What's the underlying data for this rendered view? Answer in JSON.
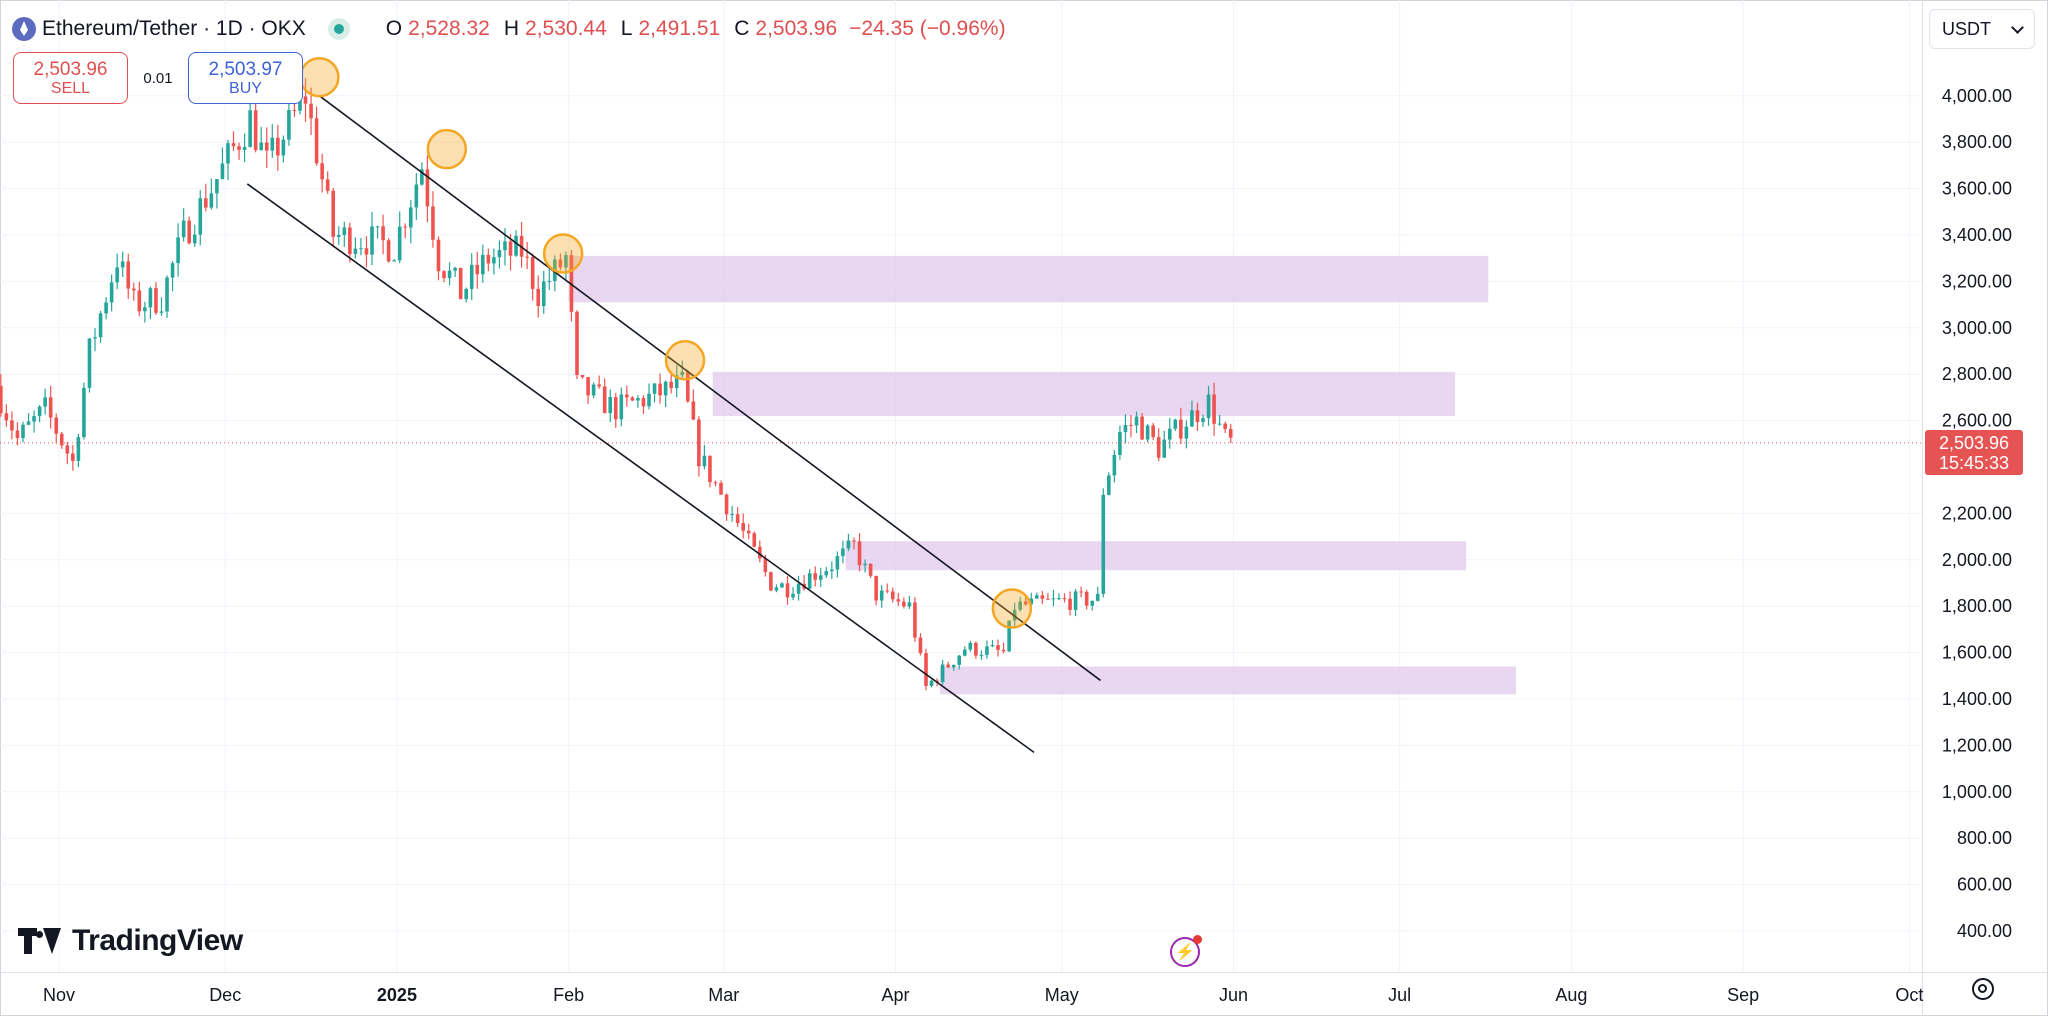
{
  "header": {
    "title": "Ethereum/Tether · 1D · OKX",
    "open_label": "O",
    "open": "2,528.32",
    "high_label": "H",
    "high": "2,530.44",
    "low_label": "L",
    "low": "2,491.51",
    "close_label": "C",
    "close": "2,503.96",
    "change": "−24.35 (−0.96%)"
  },
  "trade": {
    "sell_price": "2,503.96",
    "sell_label": "SELL",
    "spread": "0.01",
    "buy_price": "2,503.97",
    "buy_label": "BUY"
  },
  "currency": {
    "selected": "USDT"
  },
  "last_price": {
    "price": "2,503.96",
    "countdown": "15:45:33"
  },
  "branding": {
    "name": "TradingView"
  },
  "colors": {
    "up": "#26a69a",
    "down": "#ef5350",
    "zone": "#e1c8ec",
    "marker": "#f5a623",
    "price_tag": "#e55353"
  },
  "icons": [
    "ethereum-logo-icon",
    "market-status-icon",
    "chevron-down-icon",
    "lightning-icon",
    "gear-icon",
    "tradingview-logo-icon"
  ],
  "chart_data": {
    "type": "candlestick",
    "x_axis": {
      "ticks": [
        {
          "date": "2024-11-01",
          "label": "Nov"
        },
        {
          "date": "2024-12-01",
          "label": "Dec"
        },
        {
          "date": "2025-01-01",
          "label": "2025"
        },
        {
          "date": "2025-02-01",
          "label": "Feb"
        },
        {
          "date": "2025-03-01",
          "label": "Mar"
        },
        {
          "date": "2025-04-01",
          "label": "Apr"
        },
        {
          "date": "2025-05-01",
          "label": "May"
        },
        {
          "date": "2025-06-01",
          "label": "Jun"
        },
        {
          "date": "2025-07-01",
          "label": "Jul"
        },
        {
          "date": "2025-08-01",
          "label": "Aug"
        },
        {
          "date": "2025-09-01",
          "label": "Sep"
        },
        {
          "date": "2025-10-01",
          "label": "Oct"
        }
      ]
    },
    "y_axis": {
      "range": [
        300,
        4250
      ],
      "ticks": [
        "400.00",
        "600.00",
        "800.00",
        "1,000.00",
        "1,200.00",
        "1,400.00",
        "1,600.00",
        "1,800.00",
        "2,000.00",
        "2,200.00",
        "2,600.00",
        "2,800.00",
        "3,000.00",
        "3,200.00",
        "3,400.00",
        "3,600.00",
        "3,800.00",
        "4,000.00"
      ],
      "tick_values": [
        400,
        600,
        800,
        1000,
        1200,
        1400,
        1600,
        1800,
        2000,
        2200,
        2600,
        2800,
        3000,
        3200,
        3400,
        3600,
        3800,
        4000
      ]
    },
    "grid": true,
    "current_price": 2503.96,
    "candle_anchors": [
      [
        "2024-10-21",
        2750
      ],
      [
        "2024-10-25",
        2520
      ],
      [
        "2024-10-30",
        2650
      ],
      [
        "2024-11-04",
        2420
      ],
      [
        "2024-11-07",
        2900
      ],
      [
        "2024-11-12",
        3300
      ],
      [
        "2024-11-15",
        3100
      ],
      [
        "2024-11-20",
        3130
      ],
      [
        "2024-11-24",
        3400
      ],
      [
        "2024-11-29",
        3600
      ],
      [
        "2024-12-06",
        3900
      ],
      [
        "2024-12-09",
        3700
      ],
      [
        "2024-12-16",
        4000
      ],
      [
        "2024-12-21",
        3400
      ],
      [
        "2024-12-27",
        3380
      ],
      [
        "2025-01-01",
        3350
      ],
      [
        "2025-01-06",
        3700
      ],
      [
        "2025-01-09",
        3300
      ],
      [
        "2025-01-13",
        3150
      ],
      [
        "2025-01-18",
        3300
      ],
      [
        "2025-01-24",
        3330
      ],
      [
        "2025-01-27",
        3150
      ],
      [
        "2025-02-01",
        3300
      ],
      [
        "2025-02-03",
        2750
      ],
      [
        "2025-02-10",
        2650
      ],
      [
        "2025-02-16",
        2700
      ],
      [
        "2025-02-22",
        2760
      ],
      [
        "2025-02-25",
        2450
      ],
      [
        "2025-03-03",
        2200
      ],
      [
        "2025-03-10",
        1900
      ],
      [
        "2025-03-13",
        1880
      ],
      [
        "2025-03-21",
        1980
      ],
      [
        "2025-03-25",
        2060
      ],
      [
        "2025-03-29",
        1850
      ],
      [
        "2025-04-04",
        1800
      ],
      [
        "2025-04-07",
        1450
      ],
      [
        "2025-04-14",
        1620
      ],
      [
        "2025-04-21",
        1600
      ],
      [
        "2025-04-23",
        1800
      ],
      [
        "2025-05-01",
        1820
      ],
      [
        "2025-05-08",
        1830
      ],
      [
        "2025-05-09",
        2300
      ],
      [
        "2025-05-12",
        2550
      ],
      [
        "2025-05-15",
        2600
      ],
      [
        "2025-05-19",
        2480
      ],
      [
        "2025-05-24",
        2600
      ],
      [
        "2025-05-28",
        2680
      ],
      [
        "2025-05-31",
        2520
      ],
      [
        "2025-06-01",
        2504
      ]
    ],
    "zones": [
      {
        "from": "2025-02-01",
        "to": "2025-07-17",
        "low": 3110,
        "high": 3310
      },
      {
        "from": "2025-02-27",
        "to": "2025-07-11",
        "low": 2620,
        "high": 2810
      },
      {
        "from": "2025-03-23",
        "to": "2025-07-13",
        "low": 1955,
        "high": 2080
      },
      {
        "from": "2025-04-09",
        "to": "2025-07-22",
        "low": 1420,
        "high": 1540
      }
    ],
    "trend_lines": [
      {
        "from": [
          "2024-12-18",
          4000
        ],
        "to": [
          "2025-05-08",
          1480
        ]
      },
      {
        "from": [
          "2024-12-05",
          3620
        ],
        "to": [
          "2025-04-26",
          1170
        ]
      }
    ],
    "markers": [
      [
        "2024-12-18",
        4080
      ],
      [
        "2025-01-10",
        3770
      ],
      [
        "2025-01-31",
        3320
      ],
      [
        "2025-02-22",
        2860
      ],
      [
        "2025-04-22",
        1790
      ]
    ]
  }
}
